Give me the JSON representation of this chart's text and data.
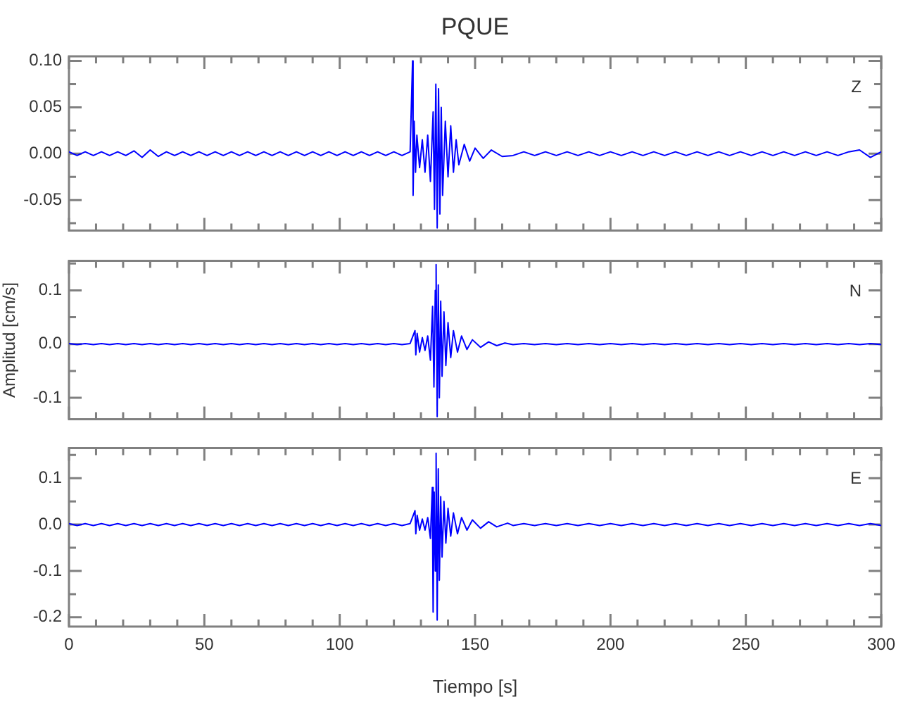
{
  "chart_data": [
    {
      "type": "line",
      "title": "PQUE",
      "annotations": [
        "Z"
      ],
      "xlim": [
        0,
        300
      ],
      "ylim": [
        -0.083,
        0.105
      ],
      "tick_labels": "y",
      "grid": false,
      "legend": false,
      "xticks": [
        {
          "value": 0,
          "label": null
        },
        {
          "value": 10,
          "label": null
        },
        {
          "value": 20,
          "label": null
        },
        {
          "value": 30,
          "label": null
        },
        {
          "value": 40,
          "label": null
        },
        {
          "value": 50,
          "label": null
        },
        {
          "value": 60,
          "label": null
        },
        {
          "value": 70,
          "label": null
        },
        {
          "value": 80,
          "label": null
        },
        {
          "value": 90,
          "label": null
        },
        {
          "value": 100,
          "label": null
        },
        {
          "value": 110,
          "label": null
        },
        {
          "value": 120,
          "label": null
        },
        {
          "value": 130,
          "label": null
        },
        {
          "value": 140,
          "label": null
        },
        {
          "value": 150,
          "label": null
        },
        {
          "value": 160,
          "label": null
        },
        {
          "value": 170,
          "label": null
        },
        {
          "value": 180,
          "label": null
        },
        {
          "value": 190,
          "label": null
        },
        {
          "value": 200,
          "label": null
        },
        {
          "value": 210,
          "label": null
        },
        {
          "value": 220,
          "label": null
        },
        {
          "value": 230,
          "label": null
        },
        {
          "value": 240,
          "label": null
        },
        {
          "value": 250,
          "label": null
        },
        {
          "value": 260,
          "label": null
        },
        {
          "value": 270,
          "label": null
        },
        {
          "value": 280,
          "label": null
        },
        {
          "value": 290,
          "label": null
        },
        {
          "value": 300,
          "label": null
        }
      ],
      "yticks": [
        {
          "value": 0.1,
          "label": "0.10"
        },
        {
          "value": 0.075,
          "label": null
        },
        0.05,
        {
          "value": 0.025,
          "label": null
        },
        {
          "value": 0,
          "label": "0.00"
        },
        {
          "value": -0.025,
          "label": null
        },
        -0.05,
        {
          "value": -0.075,
          "label": null
        }
      ],
      "series": [
        {
          "color": "#0000ff",
          "x": [
            0,
            3,
            6,
            9,
            12,
            15,
            18,
            21,
            24,
            27,
            30,
            33,
            36,
            39,
            42,
            45,
            48,
            51,
            54,
            57,
            60,
            63,
            66,
            69,
            72,
            75,
            78,
            81,
            84,
            87,
            90,
            93,
            96,
            99,
            102,
            105,
            108,
            111,
            114,
            117,
            120,
            123,
            126,
            126.9,
            127.1,
            127.5,
            128,
            128.5,
            129.5,
            130.5,
            131.5,
            132.5,
            133.5,
            134.5,
            135,
            135.5,
            136,
            136.5,
            137,
            137.5,
            138,
            139,
            140,
            141,
            142,
            143,
            144,
            146,
            148,
            150,
            153,
            156,
            160,
            164,
            168,
            172,
            176,
            180,
            184,
            188,
            192,
            196,
            200,
            204,
            208,
            212,
            216,
            220,
            224,
            228,
            232,
            236,
            240,
            244,
            248,
            252,
            256,
            260,
            264,
            268,
            272,
            276,
            280,
            284,
            288,
            292,
            296,
            300
          ],
          "values": [
            0.002,
            -0.002,
            0.002,
            -0.002,
            0.002,
            -0.002,
            0.002,
            -0.002,
            0.003,
            -0.004,
            0.004,
            -0.003,
            0.002,
            -0.002,
            0.002,
            -0.002,
            0.002,
            -0.002,
            0.002,
            -0.002,
            0.002,
            -0.002,
            0.002,
            -0.002,
            0.002,
            -0.002,
            0.002,
            -0.002,
            0.002,
            -0.002,
            0.002,
            -0.002,
            0.002,
            -0.002,
            0.002,
            -0.002,
            0.002,
            -0.002,
            0.002,
            -0.002,
            0.002,
            -0.002,
            0.002,
            0.1,
            -0.045,
            0.035,
            -0.02,
            0.02,
            -0.015,
            0.015,
            -0.02,
            0.02,
            -0.03,
            0.045,
            -0.06,
            0.075,
            -0.08,
            0.07,
            -0.065,
            0.05,
            -0.045,
            0.035,
            -0.025,
            0.03,
            -0.02,
            0.015,
            -0.012,
            0.01,
            -0.008,
            0.006,
            -0.005,
            0.004,
            -0.003,
            -0.002,
            0.002,
            -0.002,
            0.002,
            -0.002,
            0.002,
            -0.002,
            0.002,
            -0.002,
            0.002,
            -0.002,
            0.002,
            -0.002,
            0.002,
            -0.002,
            0.002,
            -0.002,
            0.002,
            -0.002,
            0.002,
            -0.002,
            0.002,
            -0.002,
            0.002,
            -0.002,
            0.002,
            -0.002,
            0.002,
            -0.002,
            0.002,
            -0.002,
            0.002,
            0.004,
            -0.004,
            0.002
          ]
        }
      ]
    },
    {
      "type": "line",
      "ylabel": "Amplitud [cm/s]",
      "annotations": [
        "N"
      ],
      "xlim": [
        0,
        300
      ],
      "ylim": [
        -0.14,
        0.155
      ],
      "tick_labels": "y",
      "grid": false,
      "legend": false,
      "xticks": [
        {
          "value": 0,
          "label": null
        },
        {
          "value": 10,
          "label": null
        },
        {
          "value": 20,
          "label": null
        },
        {
          "value": 30,
          "label": null
        },
        {
          "value": 40,
          "label": null
        },
        {
          "value": 50,
          "label": null
        },
        {
          "value": 60,
          "label": null
        },
        {
          "value": 70,
          "label": null
        },
        {
          "value": 80,
          "label": null
        },
        {
          "value": 90,
          "label": null
        },
        {
          "value": 100,
          "label": null
        },
        {
          "value": 110,
          "label": null
        },
        {
          "value": 120,
          "label": null
        },
        {
          "value": 130,
          "label": null
        },
        {
          "value": 140,
          "label": null
        },
        {
          "value": 150,
          "label": null
        },
        {
          "value": 160,
          "label": null
        },
        {
          "value": 170,
          "label": null
        },
        {
          "value": 180,
          "label": null
        },
        {
          "value": 190,
          "label": null
        },
        {
          "value": 200,
          "label": null
        },
        {
          "value": 210,
          "label": null
        },
        {
          "value": 220,
          "label": null
        },
        {
          "value": 230,
          "label": null
        },
        {
          "value": 240,
          "label": null
        },
        {
          "value": 250,
          "label": null
        },
        {
          "value": 260,
          "label": null
        },
        {
          "value": 270,
          "label": null
        },
        {
          "value": 280,
          "label": null
        },
        {
          "value": 290,
          "label": null
        },
        {
          "value": 300,
          "label": null
        }
      ],
      "yticks": [
        {
          "value": 0.15,
          "label": null
        },
        0.1,
        {
          "value": 0.05,
          "label": null
        },
        {
          "value": 0,
          "label": "0.0"
        },
        {
          "value": -0.05,
          "label": null
        },
        -0.1
      ],
      "series": [
        {
          "color": "#0000ff",
          "x": [
            0,
            3,
            6,
            9,
            12,
            15,
            18,
            21,
            24,
            27,
            30,
            33,
            36,
            39,
            42,
            45,
            48,
            51,
            54,
            57,
            60,
            63,
            66,
            69,
            72,
            75,
            78,
            81,
            84,
            87,
            90,
            93,
            96,
            99,
            102,
            105,
            108,
            111,
            114,
            117,
            120,
            123,
            126,
            127.8,
            128.1,
            128.6,
            129.5,
            130.5,
            131.5,
            132.5,
            133.5,
            134.3,
            134.8,
            135.3,
            135.6,
            136,
            136.4,
            136.8,
            137.3,
            137.8,
            138.5,
            139.2,
            140,
            141,
            142,
            143.5,
            145,
            147,
            149,
            152,
            155,
            158,
            161,
            164,
            168,
            172,
            176,
            180,
            184,
            188,
            192,
            196,
            200,
            204,
            208,
            212,
            216,
            220,
            224,
            228,
            232,
            236,
            240,
            244,
            248,
            252,
            256,
            260,
            264,
            268,
            272,
            276,
            280,
            284,
            288,
            292,
            296,
            300
          ],
          "values": [
            0.001,
            -0.001,
            0.001,
            -0.001,
            0.001,
            -0.001,
            0.001,
            -0.001,
            0.001,
            -0.001,
            0.001,
            -0.001,
            0.001,
            -0.001,
            0.001,
            -0.001,
            0.001,
            -0.001,
            0.001,
            -0.001,
            0.001,
            -0.001,
            0.001,
            -0.001,
            0.001,
            -0.001,
            0.001,
            -0.001,
            0.001,
            -0.001,
            0.001,
            -0.001,
            0.001,
            -0.001,
            0.001,
            -0.001,
            0.001,
            -0.001,
            0.001,
            -0.001,
            0.001,
            -0.001,
            0.001,
            0.025,
            -0.02,
            0.02,
            -0.015,
            0.012,
            -0.012,
            0.015,
            -0.03,
            0.07,
            -0.08,
            0.1,
            0.148,
            -0.135,
            0.11,
            -0.1,
            0.08,
            -0.06,
            0.06,
            -0.04,
            0.04,
            -0.025,
            0.025,
            -0.015,
            0.015,
            -0.01,
            0.008,
            -0.006,
            0.004,
            -0.003,
            0.002,
            -0.001,
            0.001,
            -0.001,
            0.001,
            -0.001,
            0.001,
            -0.001,
            0.001,
            -0.001,
            0.001,
            -0.001,
            0.001,
            -0.001,
            0.001,
            -0.001,
            0.001,
            -0.001,
            0.001,
            -0.001,
            0.001,
            -0.001,
            0.001,
            -0.001,
            0.001,
            -0.001,
            0.001,
            -0.001,
            0.001,
            -0.001,
            0.001,
            -0.001,
            0.001,
            -0.001,
            0.001,
            -0.001
          ]
        }
      ]
    },
    {
      "type": "line",
      "xlabel": "Tiempo [s]",
      "annotations": [
        "E"
      ],
      "xlim": [
        0,
        300
      ],
      "ylim": [
        -0.22,
        0.165
      ],
      "grid": false,
      "legend": false,
      "xticks": [
        0,
        {
          "value": 10,
          "label": null
        },
        {
          "value": 20,
          "label": null
        },
        {
          "value": 30,
          "label": null
        },
        {
          "value": 40,
          "label": null
        },
        50,
        {
          "value": 60,
          "label": null
        },
        {
          "value": 70,
          "label": null
        },
        {
          "value": 80,
          "label": null
        },
        {
          "value": 90,
          "label": null
        },
        100,
        {
          "value": 110,
          "label": null
        },
        {
          "value": 120,
          "label": null
        },
        {
          "value": 130,
          "label": null
        },
        {
          "value": 140,
          "label": null
        },
        150,
        {
          "value": 160,
          "label": null
        },
        {
          "value": 170,
          "label": null
        },
        {
          "value": 180,
          "label": null
        },
        {
          "value": 190,
          "label": null
        },
        200,
        {
          "value": 210,
          "label": null
        },
        {
          "value": 220,
          "label": null
        },
        {
          "value": 230,
          "label": null
        },
        {
          "value": 240,
          "label": null
        },
        250,
        {
          "value": 260,
          "label": null
        },
        {
          "value": 270,
          "label": null
        },
        {
          "value": 280,
          "label": null
        },
        {
          "value": 290,
          "label": null
        },
        300
      ],
      "yticks": [
        {
          "value": 0.15,
          "label": null
        },
        0.1,
        {
          "value": 0.05,
          "label": null
        },
        {
          "value": 0,
          "label": "0.0"
        },
        {
          "value": -0.05,
          "label": null
        },
        -0.1,
        {
          "value": -0.15,
          "label": null
        },
        -0.2
      ],
      "series": [
        {
          "color": "#0000ff",
          "x": [
            0,
            3,
            6,
            9,
            12,
            15,
            18,
            21,
            24,
            27,
            30,
            33,
            36,
            39,
            42,
            45,
            48,
            51,
            54,
            57,
            60,
            63,
            66,
            69,
            72,
            75,
            78,
            81,
            84,
            87,
            90,
            93,
            96,
            99,
            102,
            105,
            108,
            111,
            114,
            117,
            120,
            123,
            126,
            127.8,
            128.1,
            128.6,
            129.5,
            130.5,
            131.5,
            132.5,
            133.5,
            134.2,
            134.5,
            134.9,
            135.3,
            135.6,
            136,
            136.4,
            136.8,
            137.3,
            137.8,
            138.5,
            139.2,
            140,
            141,
            142,
            143.5,
            145,
            147,
            149,
            152,
            155,
            158,
            162,
            164,
            168,
            172,
            176,
            180,
            184,
            188,
            192,
            196,
            200,
            204,
            208,
            212,
            216,
            220,
            224,
            228,
            232,
            236,
            240,
            244,
            248,
            252,
            256,
            260,
            264,
            268,
            272,
            276,
            280,
            284,
            288,
            292,
            296,
            300
          ],
          "values": [
            0.002,
            -0.002,
            0.002,
            -0.002,
            0.002,
            -0.002,
            0.002,
            -0.002,
            0.002,
            -0.002,
            0.002,
            -0.002,
            0.002,
            -0.002,
            0.002,
            -0.002,
            0.002,
            -0.002,
            0.002,
            -0.002,
            0.002,
            -0.002,
            0.002,
            -0.002,
            0.002,
            -0.002,
            0.002,
            -0.002,
            0.002,
            -0.002,
            0.002,
            -0.002,
            0.002,
            -0.002,
            0.002,
            -0.002,
            0.002,
            -0.002,
            0.002,
            -0.002,
            0.002,
            -0.002,
            0.002,
            0.03,
            -0.02,
            0.02,
            -0.012,
            0.012,
            -0.012,
            0.015,
            -0.03,
            0.08,
            -0.189,
            0.07,
            -0.1,
            0.154,
            -0.206,
            0.12,
            -0.12,
            0.06,
            -0.07,
            0.05,
            -0.04,
            0.035,
            -0.025,
            0.025,
            -0.02,
            0.015,
            -0.012,
            0.01,
            -0.008,
            0.006,
            -0.005,
            0.003,
            -0.002,
            0.002,
            -0.002,
            0.002,
            -0.002,
            0.002,
            -0.002,
            0.002,
            -0.002,
            0.002,
            -0.002,
            0.002,
            -0.002,
            0.002,
            -0.002,
            0.002,
            -0.002,
            0.002,
            -0.002,
            0.002,
            -0.002,
            0.002,
            -0.002,
            0.002,
            -0.002,
            0.002,
            -0.002,
            0.002,
            -0.002,
            0.002,
            -0.002,
            0.002,
            -0.002,
            0.002,
            -0.002
          ]
        }
      ]
    }
  ]
}
